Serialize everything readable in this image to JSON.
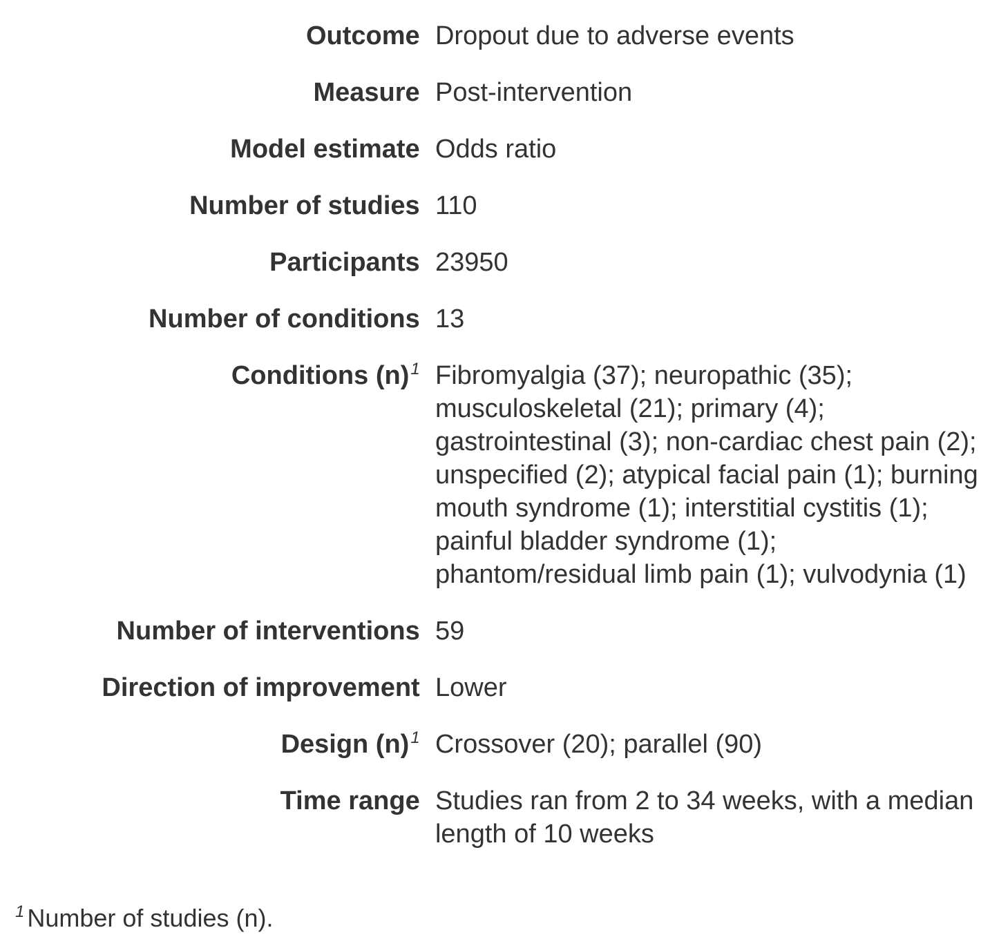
{
  "rows": [
    {
      "label": "Outcome",
      "value": "Dropout due to adverse events"
    },
    {
      "label": "Measure",
      "value": "Post-intervention"
    },
    {
      "label": "Model estimate",
      "value": "Odds ratio"
    },
    {
      "label": "Number of studies",
      "value": "110"
    },
    {
      "label": "Participants",
      "value": "23950"
    },
    {
      "label": "Number of conditions",
      "value": "13"
    },
    {
      "label": "Conditions (n)",
      "sup": "1",
      "value": "Fibromyalgia (37); neuropathic (35); musculoskeletal (21); primary (4); gastrointestinal (3); non-cardiac chest pain (2); unspecified (2); atypical facial pain (1); burning mouth syndrome (1); interstitial cystitis (1); painful bladder syndrome (1); phantom/residual limb pain (1); vulvodynia (1)"
    },
    {
      "label": "Number of interventions",
      "value": "59"
    },
    {
      "label": "Direction of improvement",
      "value": "Lower"
    },
    {
      "label": "Design (n)",
      "sup": "1",
      "value": "Crossover (20); parallel (90)"
    },
    {
      "label": "Time range",
      "value": "Studies ran from 2 to 34 weeks, with a median length of 10 weeks"
    }
  ],
  "footnote": {
    "marker": "1",
    "text": "Number of studies (n)."
  }
}
